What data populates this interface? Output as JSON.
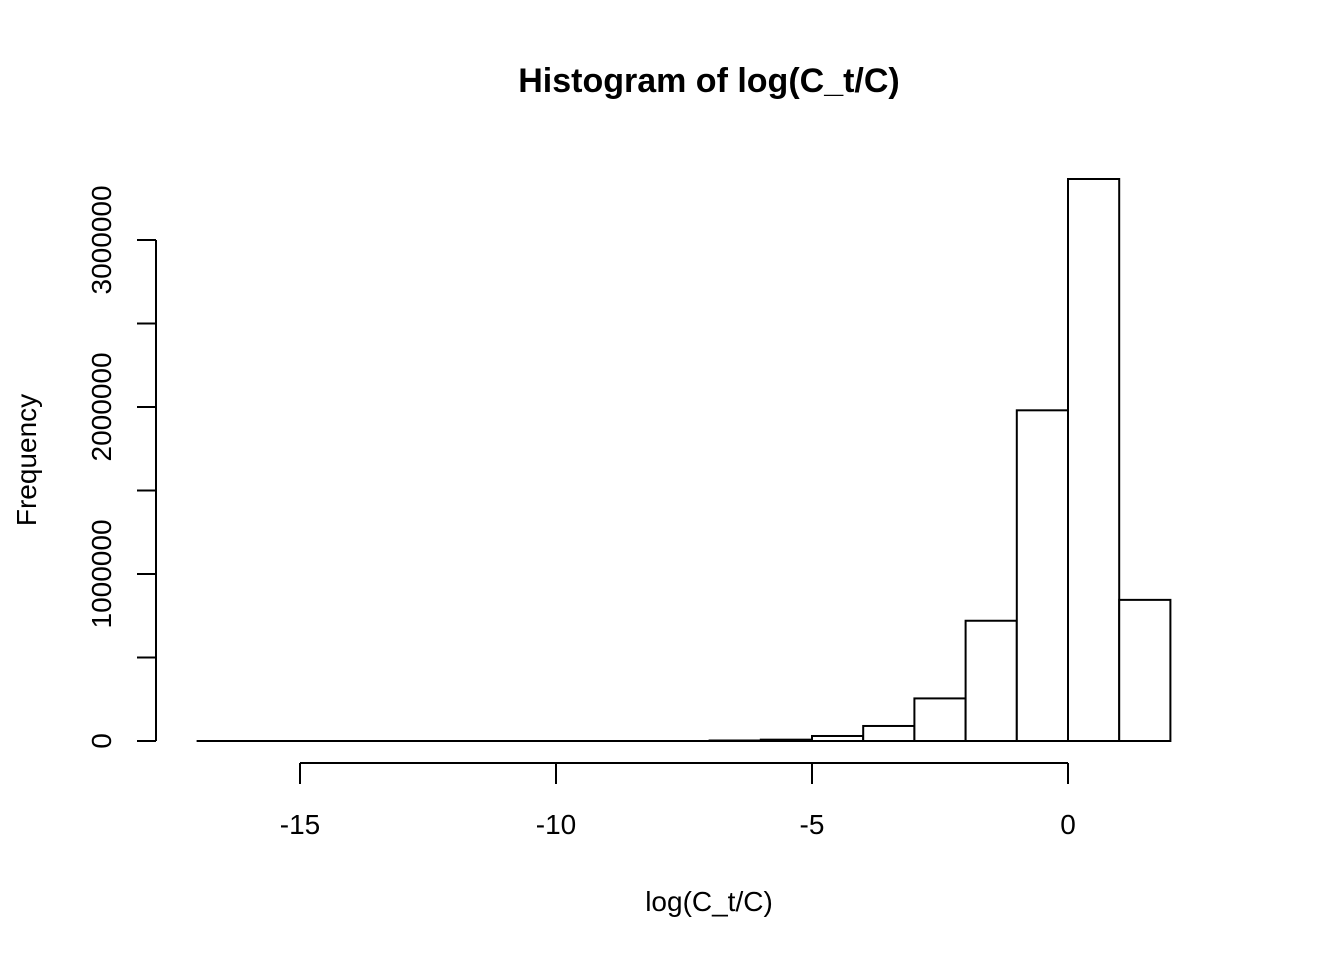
{
  "chart_data": {
    "type": "bar",
    "title": "Histogram of log(C_t/C)",
    "xlabel": "log(C_t/C)",
    "ylabel": "Frequency",
    "bin_width": 1,
    "bins": [
      {
        "x0": -17,
        "x1": -16,
        "count": 0
      },
      {
        "x0": -16,
        "x1": -15,
        "count": 0
      },
      {
        "x0": -15,
        "x1": -14,
        "count": 0
      },
      {
        "x0": -14,
        "x1": -13,
        "count": 0
      },
      {
        "x0": -13,
        "x1": -12,
        "count": 0
      },
      {
        "x0": -12,
        "x1": -11,
        "count": 0
      },
      {
        "x0": -11,
        "x1": -10,
        "count": 0
      },
      {
        "x0": -10,
        "x1": -9,
        "count": 0
      },
      {
        "x0": -9,
        "x1": -8,
        "count": 0
      },
      {
        "x0": -8,
        "x1": -7,
        "count": 0
      },
      {
        "x0": -7,
        "x1": -6,
        "count": 3000
      },
      {
        "x0": -6,
        "x1": -5,
        "count": 8000
      },
      {
        "x0": -5,
        "x1": -4,
        "count": 30000
      },
      {
        "x0": -4,
        "x1": -3,
        "count": 90000
      },
      {
        "x0": -3,
        "x1": -2,
        "count": 255000
      },
      {
        "x0": -2,
        "x1": -1,
        "count": 720000
      },
      {
        "x0": -1,
        "x1": 0,
        "count": 1980000
      },
      {
        "x0": 0,
        "x1": 1,
        "count": 3365000
      },
      {
        "x0": 1,
        "x1": 2,
        "count": 845000
      }
    ],
    "x_ticks": [
      -15,
      -10,
      -5,
      0
    ],
    "x_tick_labels": [
      "-15",
      "-10",
      "-5",
      "0"
    ],
    "y_ticks": [
      0,
      500000,
      1000000,
      1500000,
      2000000,
      2500000,
      3000000
    ],
    "y_tick_labels": [
      "0",
      "",
      "1000000",
      "",
      "2000000",
      "",
      "3000000"
    ],
    "xlim": [
      -17,
      2
    ],
    "x_axis_range": [
      -15,
      0
    ],
    "ylim": [
      0,
      3365000
    ],
    "grid": false,
    "legend": "none"
  }
}
